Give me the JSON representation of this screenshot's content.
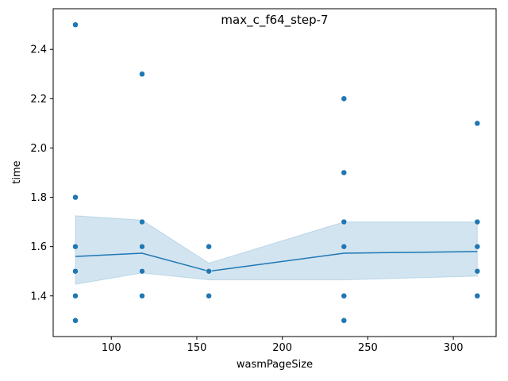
{
  "chart_data": {
    "type": "scatter",
    "title": "max_c_f64_step-7",
    "xlabel": "wasmPageSize",
    "ylabel": "time",
    "xlim": [
      66,
      325
    ],
    "ylim": [
      1.235,
      2.565
    ],
    "xticks": [
      100,
      150,
      200,
      250,
      300
    ],
    "yticks": [
      1.4,
      1.6,
      1.8,
      2.0,
      2.2,
      2.4
    ],
    "xtick_labels": [
      "100",
      "150",
      "200",
      "250",
      "300"
    ],
    "ytick_labels": [
      "1.4",
      "1.6",
      "1.8",
      "2.0",
      "2.2",
      "2.4"
    ],
    "grid": false,
    "legend": "none",
    "colors": {
      "points": "#1f77b4",
      "line": "#1f77b4",
      "band": "#1f77b4"
    },
    "points": [
      {
        "x": 79,
        "y": 2.5
      },
      {
        "x": 79,
        "y": 1.8
      },
      {
        "x": 79,
        "y": 1.6
      },
      {
        "x": 79,
        "y": 1.5
      },
      {
        "x": 79,
        "y": 1.4
      },
      {
        "x": 79,
        "y": 1.3
      },
      {
        "x": 118,
        "y": 2.3
      },
      {
        "x": 118,
        "y": 1.7
      },
      {
        "x": 118,
        "y": 1.6
      },
      {
        "x": 118,
        "y": 1.5
      },
      {
        "x": 118,
        "y": 1.4
      },
      {
        "x": 157,
        "y": 1.6
      },
      {
        "x": 157,
        "y": 1.5
      },
      {
        "x": 157,
        "y": 1.4
      },
      {
        "x": 236,
        "y": 2.2
      },
      {
        "x": 236,
        "y": 1.9
      },
      {
        "x": 236,
        "y": 1.7
      },
      {
        "x": 236,
        "y": 1.6
      },
      {
        "x": 236,
        "y": 1.4
      },
      {
        "x": 236,
        "y": 1.3
      },
      {
        "x": 314,
        "y": 2.1
      },
      {
        "x": 314,
        "y": 1.7
      },
      {
        "x": 314,
        "y": 1.6
      },
      {
        "x": 314,
        "y": 1.5
      },
      {
        "x": 314,
        "y": 1.4
      }
    ],
    "mean_line": {
      "x": [
        79,
        118,
        157,
        236,
        314
      ],
      "y": [
        1.56,
        1.573,
        1.5,
        1.573,
        1.58
      ]
    },
    "confidence_band": {
      "x": [
        79,
        118,
        157,
        236,
        314
      ],
      "lower": [
        1.447,
        1.493,
        1.465,
        1.465,
        1.48
      ],
      "upper": [
        1.725,
        1.707,
        1.533,
        1.7,
        1.7
      ]
    }
  }
}
